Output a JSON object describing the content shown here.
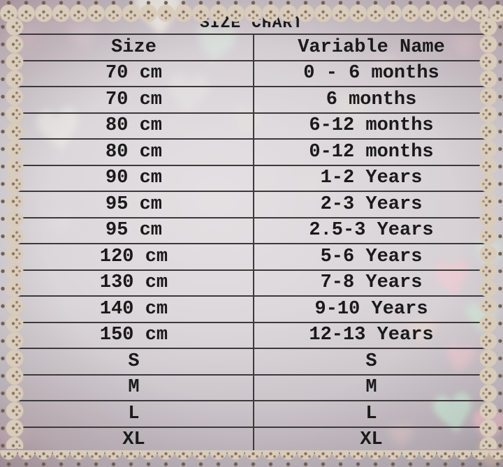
{
  "table": {
    "title": "SIZE CHART",
    "columns": [
      "Size",
      "Variable Name"
    ],
    "rows": [
      {
        "size": "70 cm",
        "name": "0 - 6 months"
      },
      {
        "size": "70 cm",
        "name": "6 months"
      },
      {
        "size": "80 cm",
        "name": "6-12 months"
      },
      {
        "size": "80 cm",
        "name": "0-12 months"
      },
      {
        "size": "90 cm",
        "name": "1-2 Years"
      },
      {
        "size": "95 cm",
        "name": "2-3 Years"
      },
      {
        "size": "95 cm",
        "name": "2.5-3 Years"
      },
      {
        "size": "120 cm",
        "name": "5-6 Years"
      },
      {
        "size": "130 cm",
        "name": "7-8 Years"
      },
      {
        "size": "140 cm",
        "name": "9-10 Years"
      },
      {
        "size": "150 cm",
        "name": "12-13 Years"
      },
      {
        "size": "S",
        "name": "S"
      },
      {
        "size": "M",
        "name": "M"
      },
      {
        "size": "L",
        "name": "L"
      },
      {
        "size": "XL",
        "name": "XL"
      }
    ]
  },
  "chart_data": {
    "type": "table",
    "title": "SIZE CHART",
    "columns": [
      "Size",
      "Variable Name"
    ],
    "rows": [
      [
        "70 cm",
        "0 - 6 months"
      ],
      [
        "70 cm",
        "6 months"
      ],
      [
        "80 cm",
        "6-12 months"
      ],
      [
        "80 cm",
        "0-12 months"
      ],
      [
        "90 cm",
        "1-2 Years"
      ],
      [
        "95 cm",
        "2-3 Years"
      ],
      [
        "95 cm",
        "2.5-3 Years"
      ],
      [
        "120 cm",
        "5-6 Years"
      ],
      [
        "130 cm",
        "7-8 Years"
      ],
      [
        "140 cm",
        "9-10 Years"
      ],
      [
        "150 cm",
        "12-13 Years"
      ],
      [
        "S",
        "S"
      ],
      [
        "M",
        "M"
      ],
      [
        "L",
        "L"
      ],
      [
        "XL",
        "XL"
      ]
    ]
  },
  "colors": {
    "lace_trim": "#d9ccba",
    "lace_dots": "#6f5f53",
    "table_line": "#3d393a",
    "text_ink": "#1b1a1a",
    "bokeh_white": "#f8f5ec",
    "bokeh_mint": "#d5ecdc",
    "bokeh_pink": "#f6ced6",
    "bokeh_peach": "#f7d9c3"
  }
}
